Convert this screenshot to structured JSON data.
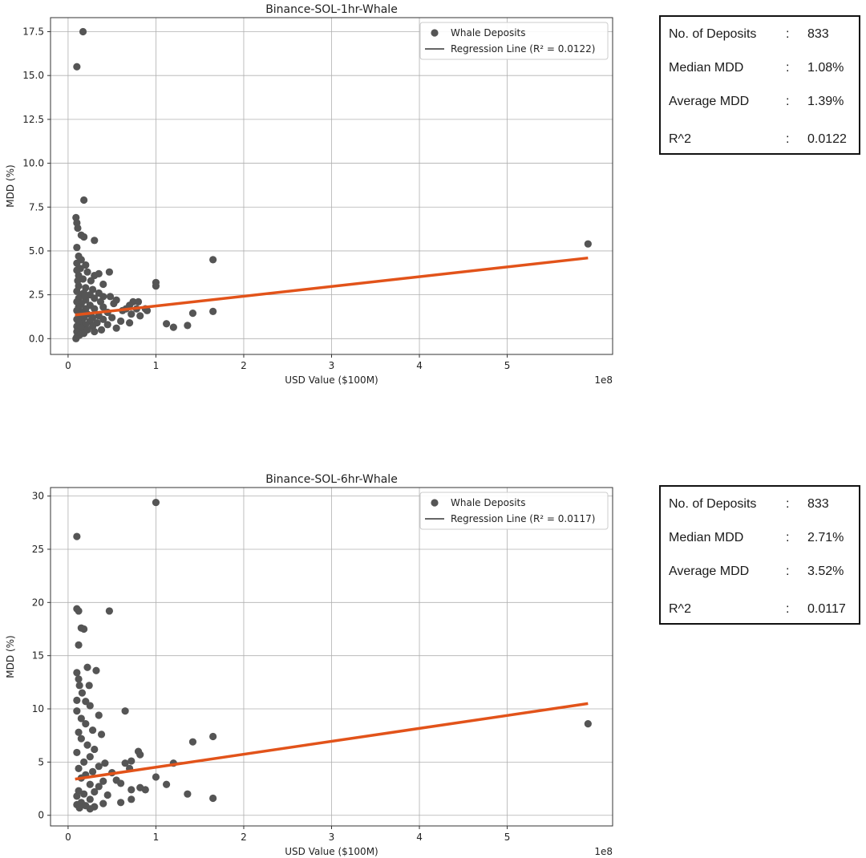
{
  "charts": [
    {
      "stats": {
        "rows": [
          {
            "label": "No. of Deposits",
            "value": "833"
          },
          {
            "label": "Median MDD",
            "value": "1.08%"
          },
          {
            "label": "Average MDD",
            "value": "1.39%"
          },
          {
            "label": "R^2",
            "value": "0.0122"
          }
        ]
      }
    },
    {
      "stats": {
        "rows": [
          {
            "label": "No. of Deposits",
            "value": "833"
          },
          {
            "label": "Median MDD",
            "value": "2.71%"
          },
          {
            "label": "Average MDD",
            "value": "3.52%"
          },
          {
            "label": "R^2",
            "value": "0.0117"
          }
        ]
      }
    }
  ],
  "chart_data": [
    {
      "type": "scatter",
      "title": "Binance-SOL-1hr-Whale",
      "xlabel": "USD Value ($100M)",
      "ylabel": "MDD (%)",
      "x_offset_label": "1e8",
      "xlim": [
        -0.2,
        6.2
      ],
      "ylim": [
        -0.9,
        18.3
      ],
      "xticks": [
        "0",
        "1",
        "2",
        "3",
        "4",
        "5"
      ],
      "yticks": [
        "0.0",
        "2.5",
        "5.0",
        "7.5",
        "10.0",
        "12.5",
        "15.0",
        "17.5"
      ],
      "grid": true,
      "legend_position": "top-right",
      "colors": {
        "points": "#555555",
        "regression": "#e2531a",
        "legend_line": "#333333"
      },
      "series": [
        {
          "name": "Whale Deposits",
          "points": [
            [
              0.17,
              17.5
            ],
            [
              0.1,
              15.5
            ],
            [
              0.18,
              7.9
            ],
            [
              0.09,
              6.9
            ],
            [
              0.1,
              6.6
            ],
            [
              0.11,
              6.3
            ],
            [
              0.15,
              5.9
            ],
            [
              0.18,
              5.8
            ],
            [
              0.3,
              5.6
            ],
            [
              0.1,
              5.2
            ],
            [
              5.92,
              5.4
            ],
            [
              1.65,
              4.5
            ],
            [
              0.12,
              4.7
            ],
            [
              0.15,
              4.5
            ],
            [
              0.1,
              4.3
            ],
            [
              0.2,
              4.2
            ],
            [
              0.14,
              4.0
            ],
            [
              0.1,
              3.9
            ],
            [
              0.22,
              3.8
            ],
            [
              0.35,
              3.7
            ],
            [
              0.47,
              3.8
            ],
            [
              0.12,
              3.6
            ],
            [
              0.3,
              3.6
            ],
            [
              0.17,
              3.4
            ],
            [
              0.26,
              3.3
            ],
            [
              0.4,
              3.1
            ],
            [
              1.0,
              3.2
            ],
            [
              1.0,
              3.0
            ],
            [
              0.12,
              3.0
            ],
            [
              0.2,
              2.9
            ],
            [
              0.28,
              2.8
            ],
            [
              0.1,
              2.7
            ],
            [
              0.35,
              2.6
            ],
            [
              0.18,
              2.6
            ],
            [
              0.15,
              2.5
            ],
            [
              0.25,
              2.5
            ],
            [
              0.4,
              2.4
            ],
            [
              0.48,
              2.4
            ],
            [
              0.12,
              2.3
            ],
            [
              0.3,
              2.3
            ],
            [
              0.2,
              2.2
            ],
            [
              0.55,
              2.2
            ],
            [
              0.1,
              2.1
            ],
            [
              0.37,
              2.1
            ],
            [
              0.74,
              2.1
            ],
            [
              0.8,
              2.1
            ],
            [
              0.15,
              2.0
            ],
            [
              0.52,
              2.0
            ],
            [
              0.7,
              1.9
            ],
            [
              0.25,
              1.9
            ],
            [
              0.12,
              1.8
            ],
            [
              0.4,
              1.8
            ],
            [
              0.2,
              1.7
            ],
            [
              0.3,
              1.7
            ],
            [
              0.66,
              1.7
            ],
            [
              0.78,
              1.7
            ],
            [
              0.88,
              1.7
            ],
            [
              0.1,
              1.6
            ],
            [
              0.62,
              1.6
            ],
            [
              0.9,
              1.6
            ],
            [
              1.65,
              1.55
            ],
            [
              0.15,
              1.5
            ],
            [
              0.45,
              1.5
            ],
            [
              0.22,
              1.4
            ],
            [
              0.72,
              1.4
            ],
            [
              1.42,
              1.45
            ],
            [
              0.12,
              1.3
            ],
            [
              0.35,
              1.3
            ],
            [
              0.82,
              1.3
            ],
            [
              0.18,
              1.2
            ],
            [
              0.28,
              1.2
            ],
            [
              0.5,
              1.2
            ],
            [
              0.1,
              1.1
            ],
            [
              0.4,
              1.1
            ],
            [
              0.6,
              1.0
            ],
            [
              0.15,
              1.0
            ],
            [
              0.25,
              1.0
            ],
            [
              0.7,
              0.9
            ],
            [
              0.12,
              0.9
            ],
            [
              0.33,
              0.9
            ],
            [
              1.12,
              0.85
            ],
            [
              0.2,
              0.8
            ],
            [
              0.45,
              0.8
            ],
            [
              1.36,
              0.75
            ],
            [
              0.1,
              0.7
            ],
            [
              0.28,
              0.7
            ],
            [
              0.55,
              0.6
            ],
            [
              1.2,
              0.65
            ],
            [
              0.15,
              0.6
            ],
            [
              0.22,
              0.5
            ],
            [
              0.38,
              0.5
            ],
            [
              0.1,
              0.4
            ],
            [
              0.3,
              0.4
            ],
            [
              0.18,
              0.3
            ],
            [
              0.13,
              0.2
            ],
            [
              0.1,
              0.1
            ],
            [
              0.09,
              0.0
            ],
            [
              0.14,
              1.35
            ],
            [
              0.19,
              2.45
            ],
            [
              0.11,
              3.3
            ]
          ]
        },
        {
          "name": "Regression Line (R² = 0.0122)",
          "points": [
            [
              0.08,
              1.35
            ],
            [
              5.92,
              4.6
            ]
          ]
        }
      ]
    },
    {
      "type": "scatter",
      "title": "Binance-SOL-6hr-Whale",
      "xlabel": "USD Value ($100M)",
      "ylabel": "MDD (%)",
      "x_offset_label": "1e8",
      "xlim": [
        -0.2,
        6.2
      ],
      "ylim": [
        -1.0,
        30.8
      ],
      "xticks": [
        "0",
        "1",
        "2",
        "3",
        "4",
        "5"
      ],
      "yticks": [
        "0",
        "5",
        "10",
        "15",
        "20",
        "25",
        "30"
      ],
      "grid": true,
      "legend_position": "top-right",
      "colors": {
        "points": "#555555",
        "regression": "#e2531a",
        "legend_line": "#333333"
      },
      "series": [
        {
          "name": "Whale Deposits",
          "points": [
            [
              1.0,
              29.4
            ],
            [
              0.1,
              26.2
            ],
            [
              0.1,
              19.4
            ],
            [
              0.12,
              19.2
            ],
            [
              0.47,
              19.2
            ],
            [
              0.15,
              17.6
            ],
            [
              0.18,
              17.5
            ],
            [
              0.12,
              16.0
            ],
            [
              0.22,
              13.9
            ],
            [
              0.32,
              13.6
            ],
            [
              0.1,
              13.4
            ],
            [
              0.12,
              12.8
            ],
            [
              0.24,
              12.2
            ],
            [
              0.13,
              12.2
            ],
            [
              0.16,
              11.5
            ],
            [
              0.1,
              10.8
            ],
            [
              0.2,
              10.7
            ],
            [
              0.25,
              10.3
            ],
            [
              0.35,
              9.4
            ],
            [
              0.65,
              9.8
            ],
            [
              0.1,
              9.8
            ],
            [
              0.15,
              9.1
            ],
            [
              0.2,
              8.6
            ],
            [
              0.28,
              8.0
            ],
            [
              0.12,
              7.8
            ],
            [
              0.38,
              7.6
            ],
            [
              1.65,
              7.4
            ],
            [
              1.42,
              6.9
            ],
            [
              0.15,
              7.2
            ],
            [
              0.22,
              6.6
            ],
            [
              0.3,
              6.2
            ],
            [
              0.8,
              6.0
            ],
            [
              0.82,
              5.7
            ],
            [
              0.1,
              5.9
            ],
            [
              0.25,
              5.5
            ],
            [
              0.72,
              5.1
            ],
            [
              0.65,
              4.9
            ],
            [
              1.2,
              4.9
            ],
            [
              0.42,
              4.9
            ],
            [
              0.18,
              5.0
            ],
            [
              0.35,
              4.6
            ],
            [
              0.7,
              4.4
            ],
            [
              0.12,
              4.4
            ],
            [
              0.28,
              4.1
            ],
            [
              0.5,
              4.0
            ],
            [
              0.2,
              3.8
            ],
            [
              1.0,
              3.6
            ],
            [
              0.55,
              3.3
            ],
            [
              0.15,
              3.5
            ],
            [
              0.4,
              3.2
            ],
            [
              0.6,
              3.0
            ],
            [
              1.12,
              2.9
            ],
            [
              0.25,
              2.9
            ],
            [
              0.35,
              2.7
            ],
            [
              0.82,
              2.6
            ],
            [
              0.88,
              2.4
            ],
            [
              0.72,
              2.4
            ],
            [
              0.12,
              2.3
            ],
            [
              0.3,
              2.2
            ],
            [
              1.36,
              2.0
            ],
            [
              0.18,
              2.0
            ],
            [
              0.45,
              1.9
            ],
            [
              0.1,
              1.8
            ],
            [
              1.65,
              1.6
            ],
            [
              0.72,
              1.5
            ],
            [
              0.25,
              1.5
            ],
            [
              0.6,
              1.2
            ],
            [
              0.15,
              1.2
            ],
            [
              0.4,
              1.1
            ],
            [
              0.1,
              1.0
            ],
            [
              0.2,
              0.9
            ],
            [
              0.3,
              0.8
            ],
            [
              0.13,
              0.7
            ],
            [
              0.25,
              0.6
            ],
            [
              5.92,
              8.6
            ]
          ]
        },
        {
          "name": "Regression Line (R² = 0.0117)",
          "points": [
            [
              0.08,
              3.4
            ],
            [
              5.92,
              10.5
            ]
          ]
        }
      ]
    }
  ]
}
